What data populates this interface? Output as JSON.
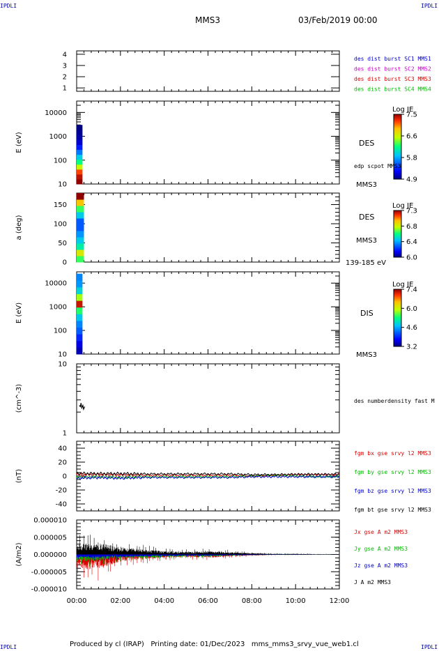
{
  "corner_tag": "IPDLI",
  "header": {
    "title": "MMS3",
    "date": "03/Feb/2019 00:00"
  },
  "footer": {
    "text": "Produced by cl (IRAP)   Printing date: 01/Dec/2023   mms_mms3_srvy_vue_web1.cl"
  },
  "colors": {
    "black": "#000000",
    "red": "#dd0000",
    "green": "#00bb00",
    "blue": "#0000cc",
    "magenta": "#cc00cc",
    "navy": "#0000aa"
  },
  "panels": {
    "p1": {
      "ylabel": "",
      "legend": [
        {
          "text": "des dist burst SC1 MMS1",
          "color": "#0000cc"
        },
        {
          "text": "des dist burst SC2 MMS2",
          "color": "#cc00cc"
        },
        {
          "text": "des dist burst SC3 MMS3",
          "color": "#dd0000"
        },
        {
          "text": "des dist burst SC4 MMS4",
          "color": "#00bb00"
        }
      ]
    },
    "p2": {
      "ylabel": "E (eV)",
      "right_label": "DES",
      "right_sub": "edp scpot MMS3",
      "bottom_tag": "MMS3",
      "colorbar": {
        "title": "Log JE",
        "ticks": [
          "7.5",
          "6.6",
          "5.8",
          "4.9"
        ]
      }
    },
    "p3": {
      "ylabel": "a (deg)",
      "right_label": "DES",
      "right_sub": "MMS3",
      "bottom_tag": "139-185 eV",
      "colorbar": {
        "title": "Log JE",
        "ticks": [
          "7.3",
          "6.8",
          "6.4",
          "6.0"
        ]
      }
    },
    "p4": {
      "ylabel": "E (eV)",
      "right_label": "DIS",
      "bottom_tag": "MMS3",
      "colorbar": {
        "title": "Log JE",
        "ticks": [
          "7.4",
          "6.0",
          "4.6",
          "3.2"
        ]
      }
    },
    "p5": {
      "ylabel": "(cm^-3)",
      "legend": [
        {
          "text": "des numberdensity fast M",
          "color": "#000000"
        }
      ]
    },
    "p6": {
      "ylabel": "(nT)",
      "legend": [
        {
          "text": "fgm bx gse srvy l2 MMS3",
          "color": "#dd0000"
        },
        {
          "text": "fgm by gse srvy l2 MMS3",
          "color": "#00bb00"
        },
        {
          "text": "fgm bz gse srvy l2 MMS3",
          "color": "#0000cc"
        },
        {
          "text": "fgm bt gse srvy l2 MMS3",
          "color": "#000000"
        }
      ]
    },
    "p7": {
      "ylabel": "(A/m2)",
      "legend": [
        {
          "text": "Jx gse A m2 MMS3",
          "color": "#dd0000"
        },
        {
          "text": "Jy gse A m2 MMS3",
          "color": "#00bb00"
        },
        {
          "text": "Jz gse A m2 MMS3",
          "color": "#0000cc"
        },
        {
          "text": "J A m2 MMS3",
          "color": "#000000"
        }
      ]
    }
  },
  "chart_data": [
    {
      "type": "line",
      "panel": "p1",
      "x_range": [
        "00:00",
        "12:00"
      ],
      "yticks": [
        "1",
        "2",
        "3",
        "4"
      ],
      "ylim": [
        0.7,
        4.3
      ],
      "series": []
    },
    {
      "type": "heatmap",
      "panel": "p2",
      "yscale": "log",
      "ylim": [
        10,
        30000
      ],
      "yticks": [
        "10",
        "100",
        "1000",
        "10000"
      ],
      "data_time_range": [
        "00:00",
        "00:16"
      ],
      "clim": [
        4.9,
        7.5
      ],
      "column_profile_low_to_high": [
        7.5,
        7.4,
        7.2,
        6.6,
        6.2,
        5.9,
        5.6,
        5.3,
        5.1,
        5.0,
        4.95,
        4.9
      ]
    },
    {
      "type": "heatmap",
      "panel": "p3",
      "ylim": [
        0,
        180
      ],
      "yticks": [
        "0",
        "50",
        "100",
        "150"
      ],
      "data_time_range": [
        "00:00",
        "00:20"
      ],
      "clim": [
        6.0,
        7.3
      ],
      "column_profile_low_to_high": [
        6.7,
        6.9,
        6.6,
        6.5,
        6.4,
        6.3,
        6.3,
        6.5,
        6.7,
        7.0,
        7.3
      ]
    },
    {
      "type": "heatmap",
      "panel": "p4",
      "yscale": "log",
      "ylim": [
        10,
        30000
      ],
      "yticks": [
        "10",
        "100",
        "1000",
        "10000"
      ],
      "data_time_range": [
        "00:00",
        "00:16"
      ],
      "clim": [
        3.2,
        7.4
      ],
      "column_profile_low_to_high": [
        3.4,
        3.6,
        3.9,
        4.2,
        4.4,
        4.8,
        5.4,
        7.2,
        5.8,
        4.9,
        4.5,
        4.4
      ]
    },
    {
      "type": "line",
      "panel": "p5",
      "yscale": "log",
      "ylim": [
        1,
        10
      ],
      "yticks": [
        "1",
        "10"
      ],
      "series": [
        {
          "name": "des numberdensity fast M",
          "x": [
            "00:07",
            "00:10",
            "00:12",
            "00:14",
            "00:17",
            "00:19",
            "00:22"
          ],
          "y": [
            2.5,
            2.4,
            2.7,
            2.3,
            2.5,
            2.2,
            2.4
          ]
        }
      ]
    },
    {
      "type": "line",
      "panel": "p6",
      "ylim": [
        -50,
        50
      ],
      "yticks": [
        "40",
        "20",
        "0",
        "-20",
        "-40"
      ],
      "x_hours": [
        0,
        1,
        2,
        3,
        4,
        5,
        6,
        7,
        8,
        9,
        10,
        11,
        12
      ],
      "series": [
        {
          "name": "fgm bx gse srvy l2 MMS3",
          "values": [
            2,
            2,
            1.5,
            1,
            1,
            1,
            1,
            1,
            0,
            1,
            2,
            2,
            2
          ]
        },
        {
          "name": "fgm by gse srvy l2 MMS3",
          "values": [
            -2,
            -1,
            -2,
            -1,
            -1,
            -1,
            -1,
            -1,
            0,
            1,
            0,
            -1,
            -1
          ]
        },
        {
          "name": "fgm bz gse srvy l2 MMS3",
          "values": [
            -3,
            -2,
            -3,
            -2,
            -2,
            -2,
            -2,
            -2,
            -1,
            -1,
            -1,
            -1,
            -1
          ]
        },
        {
          "name": "fgm bt gse srvy l2 MMS3",
          "values": [
            4,
            3.5,
            3.5,
            3,
            3,
            3,
            3,
            3,
            2,
            2,
            2.5,
            2.5,
            2.5
          ]
        }
      ]
    },
    {
      "type": "line",
      "panel": "p7",
      "ylim": [
        -1e-05,
        1e-05
      ],
      "yticks": [
        "0.000010",
        "0.000005",
        "0.000000",
        "-0.000005",
        "-0.000010"
      ],
      "x_hours": [
        0,
        1,
        2,
        3,
        4,
        5,
        6,
        7,
        8,
        9,
        10,
        11,
        12
      ],
      "series": [
        {
          "name": "J A m2 MMS3",
          "values": [
            3e-06,
            3.5e-06,
            2e-06,
            1.5e-06,
            1e-06,
            8e-07,
            1e-06,
            7e-07,
            4e-07,
            2e-07,
            2e-07,
            1e-07,
            1e-07
          ]
        },
        {
          "name": "Jx gse A m2 MMS3",
          "values": [
            -4e-06,
            -4.5e-06,
            -2e-06,
            -1.5e-06,
            -1e-06,
            -8e-07,
            -1e-06,
            -6e-07,
            -3e-07,
            -1e-07,
            -1e-07,
            -5e-08,
            -5e-08
          ]
        },
        {
          "name": "Jy gse A m2 MMS3",
          "values": [
            -2e-06,
            -2e-06,
            -1e-06,
            -1e-06,
            -8e-07,
            -6e-07,
            -6e-07,
            -4e-07,
            -2e-07,
            -1e-07,
            -1e-07,
            -5e-08,
            -5e-08
          ]
        },
        {
          "name": "Jz gse A m2 MMS3",
          "values": [
            -1e-06,
            -1.2e-06,
            -8e-07,
            -6e-07,
            -5e-07,
            -4e-07,
            -4e-07,
            -3e-07,
            -2e-07,
            -1e-07,
            -1e-07,
            -5e-08,
            -5e-08
          ]
        }
      ]
    }
  ],
  "x_axis": {
    "ticks": [
      "00:00",
      "02:00",
      "04:00",
      "06:00",
      "08:00",
      "10:00",
      "12:00"
    ]
  }
}
